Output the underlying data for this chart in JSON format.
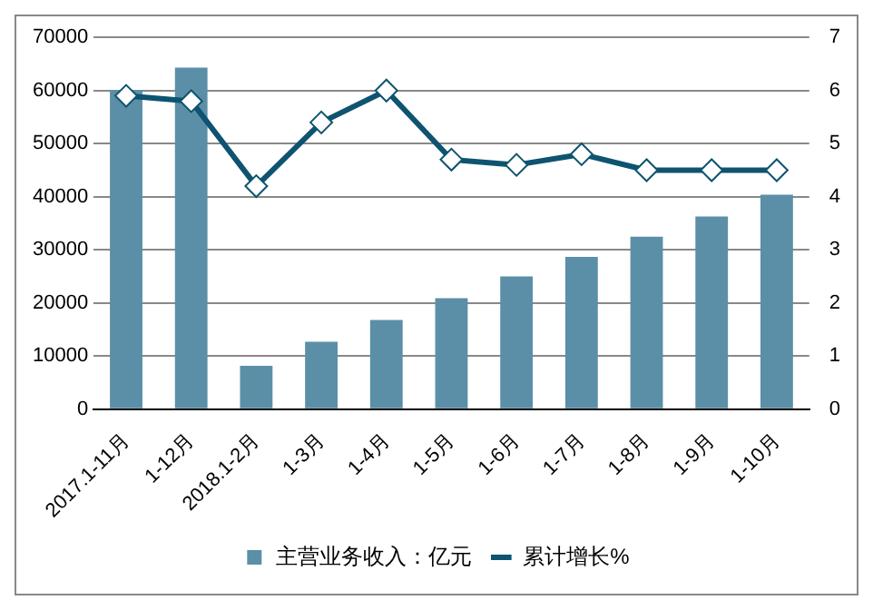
{
  "chart_data": {
    "type": "bar",
    "categories": [
      "2017.1-11月",
      "1-12月",
      "2018.1-2月",
      "1-3月",
      "1-4月",
      "1-5月",
      "1-6月",
      "1-7月",
      "1-8月",
      "1-9月",
      "1-10月"
    ],
    "series": [
      {
        "name": "主营业务收入：亿元",
        "color": "#5b8fa8",
        "values": [
          60100,
          64300,
          8200,
          12700,
          16800,
          20900,
          25000,
          28700,
          32500,
          36300,
          40400
        ]
      },
      {
        "name": "累计增长%",
        "type": "line",
        "axis": "y2",
        "color": "#0e5470",
        "marker": "diamond",
        "values": [
          5.9,
          5.8,
          4.2,
          5.4,
          6.0,
          4.7,
          4.6,
          4.8,
          4.5,
          4.5,
          4.5
        ]
      }
    ],
    "ylim": [
      0,
      70000
    ],
    "yticks": [
      0,
      10000,
      20000,
      30000,
      40000,
      50000,
      60000,
      70000
    ],
    "y2lim": [
      0,
      7
    ],
    "y2ticks": [
      0,
      1,
      2,
      3,
      4,
      5,
      6,
      7
    ],
    "grid": "y",
    "legend": "bottom"
  }
}
